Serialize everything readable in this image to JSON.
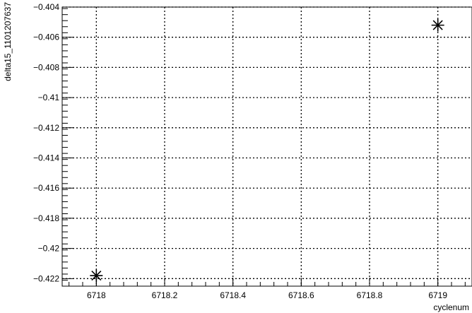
{
  "chart_data": {
    "type": "scatter",
    "title": "",
    "xlabel": "cyclenum",
    "ylabel": "delta15_1101207637",
    "xlim": [
      6717.9,
      6719.1
    ],
    "ylim": [
      -0.4225,
      -0.404
    ],
    "grid": true,
    "x_ticks": [
      6718,
      6718.2,
      6718.4,
      6718.6,
      6718.8,
      6719
    ],
    "x_tick_labels": [
      "6718",
      "6718.2",
      "6718.4",
      "6718.6",
      "6718.8",
      "6719"
    ],
    "y_ticks": [
      -0.404,
      -0.406,
      -0.408,
      -0.41,
      -0.412,
      -0.414,
      -0.416,
      -0.418,
      -0.42,
      -0.422
    ],
    "y_tick_labels": [
      "−0.404",
      "−0.406",
      "−0.408",
      "−0.41",
      "−0.412",
      "−0.414",
      "−0.416",
      "−0.418",
      "−0.42",
      "−0.422"
    ],
    "marker": "asterisk",
    "series": [
      {
        "x": [
          6718,
          6719
        ],
        "y": [
          -0.4218,
          -0.4052
        ]
      }
    ]
  }
}
